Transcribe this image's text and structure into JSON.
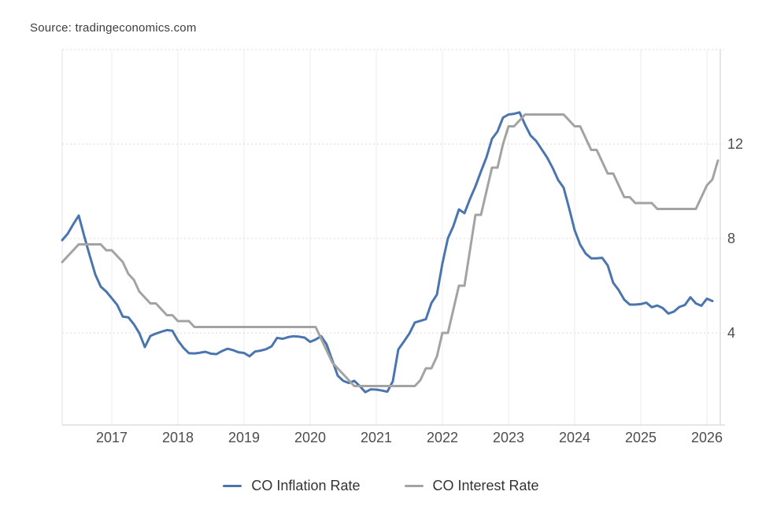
{
  "source": {
    "text": "Source: tradingeconomics.com"
  },
  "legend": {
    "position": "bottom-center",
    "items": [
      {
        "label": "CO Inflation Rate",
        "color": "#4a75ae"
      },
      {
        "label": "CO Interest Rate",
        "color": "#a3a3a3"
      }
    ]
  },
  "axis": {
    "x_tick_labels": [
      "2017",
      "2018",
      "2019",
      "2020",
      "2021",
      "2022",
      "2023",
      "2024",
      "2025",
      "2026"
    ],
    "y_tick_labels": [
      "4",
      "8",
      "12"
    ],
    "label_color": "#4d4d4d"
  },
  "chart_data": {
    "type": "line",
    "title": "",
    "xlabel": "",
    "ylabel": "",
    "frequency": "monthly",
    "x_start": {
      "year": 2016,
      "month": 4
    },
    "xlim": [
      2016.25,
      2026.202
    ],
    "ylim": [
      0.1,
      16.0
    ],
    "x_ticks": [
      2017,
      2018,
      2019,
      2020,
      2021,
      2022,
      2023,
      2024,
      2025,
      2026
    ],
    "y_ticks": [
      4,
      8,
      12
    ],
    "grid": {
      "vertical_solid": true,
      "horizontal_dotted": true
    },
    "legend_position": "bottom-center",
    "series": [
      {
        "name": "CO Inflation Rate",
        "color": "#4a75ae",
        "values": [
          7.93,
          8.2,
          8.6,
          8.97,
          8.1,
          7.27,
          6.48,
          5.96,
          5.75,
          5.47,
          5.18,
          4.69,
          4.66,
          4.37,
          3.99,
          3.4,
          3.87,
          3.97,
          4.05,
          4.12,
          4.09,
          3.68,
          3.37,
          3.14,
          3.13,
          3.16,
          3.2,
          3.12,
          3.1,
          3.23,
          3.33,
          3.27,
          3.18,
          3.15,
          3.01,
          3.21,
          3.25,
          3.31,
          3.43,
          3.79,
          3.75,
          3.82,
          3.86,
          3.84,
          3.8,
          3.62,
          3.72,
          3.86,
          3.51,
          2.85,
          2.19,
          1.97,
          1.88,
          1.97,
          1.75,
          1.49,
          1.61,
          1.6,
          1.56,
          1.51,
          1.95,
          3.3,
          3.63,
          3.97,
          4.44,
          4.51,
          4.58,
          5.26,
          5.62,
          6.94,
          8.01,
          8.53,
          9.23,
          9.07,
          9.67,
          10.21,
          10.84,
          11.44,
          12.22,
          12.53,
          13.12,
          13.25,
          13.28,
          13.34,
          12.82,
          12.36,
          12.13,
          11.78,
          11.43,
          10.99,
          10.48,
          10.15,
          9.28,
          8.35,
          7.74,
          7.36,
          7.16,
          7.16,
          7.18,
          6.86,
          6.12,
          5.81,
          5.41,
          5.2,
          5.2,
          5.22,
          5.28,
          5.09,
          5.16,
          5.05,
          4.82,
          4.9,
          5.1,
          5.18,
          5.51,
          5.25,
          5.15,
          5.45,
          5.35,
          null
        ]
      },
      {
        "name": "CO Interest Rate",
        "color": "#a3a3a3",
        "values": [
          7.0,
          7.25,
          7.5,
          7.75,
          7.75,
          7.75,
          7.75,
          7.75,
          7.5,
          7.5,
          7.25,
          7.0,
          6.5,
          6.25,
          5.75,
          5.5,
          5.25,
          5.25,
          5.0,
          4.75,
          4.75,
          4.5,
          4.5,
          4.5,
          4.25,
          4.25,
          4.25,
          4.25,
          4.25,
          4.25,
          4.25,
          4.25,
          4.25,
          4.25,
          4.25,
          4.25,
          4.25,
          4.25,
          4.25,
          4.25,
          4.25,
          4.25,
          4.25,
          4.25,
          4.25,
          4.25,
          4.25,
          3.75,
          3.25,
          2.75,
          2.5,
          2.25,
          2.0,
          1.75,
          1.75,
          1.75,
          1.75,
          1.75,
          1.75,
          1.75,
          1.75,
          1.75,
          1.75,
          1.75,
          1.75,
          2.0,
          2.5,
          2.5,
          3.0,
          4.0,
          4.0,
          5.0,
          6.0,
          6.0,
          7.5,
          9.0,
          9.0,
          10.0,
          11.0,
          11.0,
          12.0,
          12.75,
          12.75,
          13.0,
          13.25,
          13.25,
          13.25,
          13.25,
          13.25,
          13.25,
          13.25,
          13.25,
          13.0,
          12.75,
          12.75,
          12.25,
          11.75,
          11.75,
          11.25,
          10.75,
          10.75,
          10.25,
          9.75,
          9.75,
          9.5,
          9.5,
          9.5,
          9.5,
          9.25,
          9.25,
          9.25,
          9.25,
          9.25,
          9.25,
          9.25,
          9.25,
          9.75,
          10.25,
          10.5,
          11.3
        ]
      }
    ]
  },
  "style_colors": {
    "grid_vertical": "#ececec",
    "grid_dotted": "#d9d9d9",
    "border_light": "#e3e3e3",
    "border_axis": "#cccccc"
  }
}
